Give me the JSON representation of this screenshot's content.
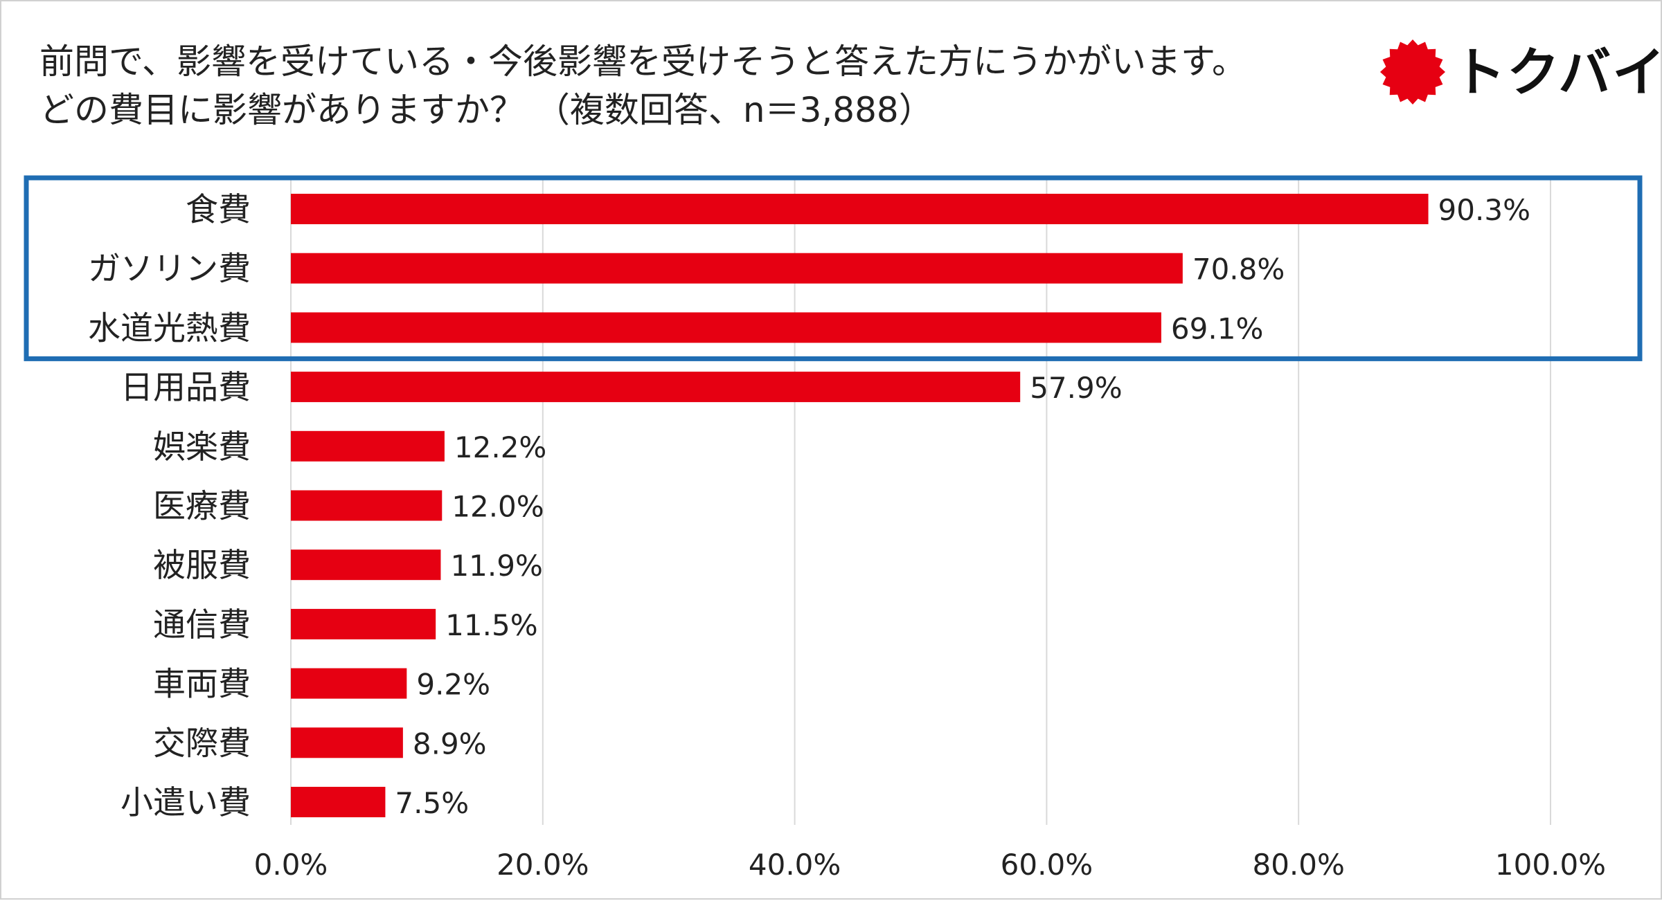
{
  "header": {
    "title_line1": "前問で、影響を受けている・今後影響を受けそうと答えた方にうかがいます。",
    "title_line2": "どの費目に影響がありますか？ （複数回答、n＝3,888）"
  },
  "logo": {
    "text": "トクバイ",
    "mark_color": "#e60012",
    "icon": "sun-burst-icon"
  },
  "colors": {
    "bar": "#e60012",
    "highlight": "#1f6db3",
    "grid": "#d9d9d9",
    "text": "#222222"
  },
  "chart_data": {
    "type": "bar",
    "orientation": "horizontal",
    "categories": [
      "食費",
      "ガソリン費",
      "水道光熱費",
      "日用品費",
      "娯楽費",
      "医療費",
      "被服費",
      "通信費",
      "車両費",
      "交際費",
      "小遣い費"
    ],
    "values": [
      90.3,
      70.8,
      69.1,
      57.9,
      12.2,
      12.0,
      11.9,
      11.5,
      9.2,
      8.9,
      7.5
    ],
    "data_labels": [
      "90.3%",
      "70.8%",
      "69.1%",
      "57.9%",
      "12.2%",
      "12.0%",
      "11.9%",
      "11.5%",
      "9.2%",
      "8.9%",
      "7.5%"
    ],
    "xlim": [
      0,
      100
    ],
    "x_ticks": [
      0,
      20,
      40,
      60,
      80,
      100
    ],
    "x_tick_labels": [
      "0.0%",
      "20.0%",
      "40.0%",
      "60.0%",
      "80.0%",
      "100.0%"
    ],
    "grid": "vertical",
    "highlighted_categories": [
      "食費",
      "ガソリン費",
      "水道光熱費"
    ]
  }
}
